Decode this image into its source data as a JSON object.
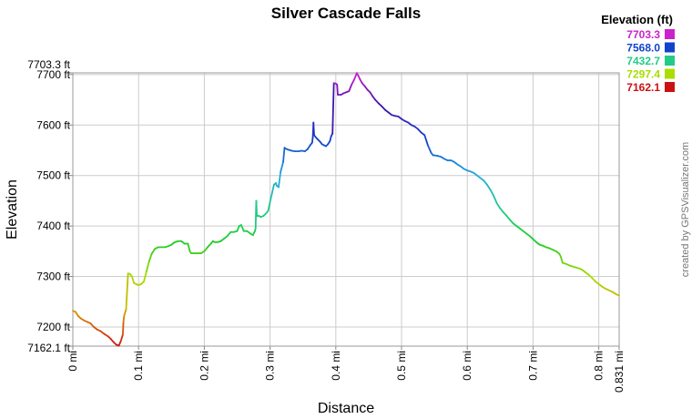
{
  "chart_data": {
    "type": "line",
    "title": "Silver Cascade Falls",
    "xlabel": "Distance",
    "ylabel": "Elevation",
    "xlim": [
      0,
      0.831
    ],
    "ylim": [
      7162.1,
      7703.3
    ],
    "x_ticks": [
      {
        "value": 0,
        "label": "0 mi"
      },
      {
        "value": 0.1,
        "label": "0.1 mi"
      },
      {
        "value": 0.2,
        "label": "0.2 mi"
      },
      {
        "value": 0.3,
        "label": "0.3 mi"
      },
      {
        "value": 0.4,
        "label": "0.4 mi"
      },
      {
        "value": 0.5,
        "label": "0.5 mi"
      },
      {
        "value": 0.6,
        "label": "0.6 mi"
      },
      {
        "value": 0.7,
        "label": "0.7 mi"
      },
      {
        "value": 0.8,
        "label": "0.8 mi"
      },
      {
        "value": 0.831,
        "label": "0.831 mi"
      }
    ],
    "y_ticks": [
      {
        "value": 7162.1,
        "label": "7162.1 ft"
      },
      {
        "value": 7200,
        "label": "7200 ft"
      },
      {
        "value": 7300,
        "label": "7300 ft"
      },
      {
        "value": 7400,
        "label": "7400 ft"
      },
      {
        "value": 7500,
        "label": "7500 ft"
      },
      {
        "value": 7600,
        "label": "7600 ft"
      },
      {
        "value": 7700,
        "label": "7700 ft"
      },
      {
        "value": 7703.3,
        "label": "7703.3 ft"
      }
    ],
    "grid": true,
    "legend": {
      "title": "Elevation (ft)",
      "placement": "top-right",
      "entries": [
        {
          "label": "7703.3",
          "color": "#cc22cc"
        },
        {
          "label": "7568.0",
          "color": "#1144cc"
        },
        {
          "label": "7432.7",
          "color": "#22cc88"
        },
        {
          "label": "7297.4",
          "color": "#aadd00"
        },
        {
          "label": "7162.1",
          "color": "#cc1111"
        }
      ]
    },
    "series": [
      {
        "x": [
          0,
          0.004,
          0.008,
          0.012,
          0.017,
          0.022,
          0.027,
          0.032,
          0.037,
          0.042,
          0.048,
          0.054,
          0.058,
          0.062,
          0.066,
          0.07,
          0.073,
          0.076,
          0.077,
          0.078,
          0.081,
          0.084,
          0.087,
          0.09,
          0.093,
          0.096,
          0.1,
          0.104,
          0.108,
          0.112,
          0.116,
          0.12,
          0.125,
          0.13,
          0.135,
          0.14,
          0.145,
          0.15,
          0.155,
          0.16,
          0.165,
          0.17,
          0.175,
          0.178,
          0.18,
          0.185,
          0.19,
          0.195,
          0.2,
          0.205,
          0.21,
          0.213,
          0.216,
          0.22,
          0.225,
          0.23,
          0.235,
          0.24,
          0.245,
          0.25,
          0.253,
          0.256,
          0.26,
          0.265,
          0.27,
          0.274,
          0.277,
          0.278,
          0.279,
          0.28,
          0.283,
          0.286,
          0.29,
          0.294,
          0.297,
          0.3,
          0.303,
          0.306,
          0.309,
          0.31,
          0.313,
          0.316,
          0.32,
          0.322,
          0.324,
          0.328,
          0.333,
          0.338,
          0.343,
          0.348,
          0.353,
          0.357,
          0.361,
          0.364,
          0.365,
          0.366,
          0.367,
          0.37,
          0.373,
          0.376,
          0.379,
          0.382,
          0.385,
          0.388,
          0.391,
          0.393,
          0.395,
          0.397,
          0.4,
          0.402,
          0.403,
          0.408,
          0.412,
          0.416,
          0.42,
          0.424,
          0.428,
          0.432,
          0.434,
          0.437,
          0.44,
          0.444,
          0.448,
          0.452,
          0.456,
          0.46,
          0.465,
          0.47,
          0.475,
          0.48,
          0.485,
          0.49,
          0.495,
          0.5,
          0.505,
          0.51,
          0.515,
          0.52,
          0.525,
          0.53,
          0.535,
          0.54,
          0.545,
          0.548,
          0.55,
          0.555,
          0.56,
          0.565,
          0.57,
          0.575,
          0.58,
          0.585,
          0.59,
          0.595,
          0.6,
          0.605,
          0.61,
          0.615,
          0.62,
          0.625,
          0.63,
          0.635,
          0.64,
          0.645,
          0.65,
          0.655,
          0.66,
          0.665,
          0.67,
          0.675,
          0.68,
          0.685,
          0.69,
          0.695,
          0.7,
          0.705,
          0.71,
          0.715,
          0.72,
          0.725,
          0.73,
          0.735,
          0.74,
          0.742,
          0.745,
          0.75,
          0.755,
          0.76,
          0.765,
          0.77,
          0.775,
          0.78,
          0.785,
          0.79,
          0.795,
          0.8,
          0.805,
          0.81,
          0.815,
          0.82,
          0.825,
          0.831
        ],
        "y": [
          7232,
          7230,
          7222,
          7217,
          7213,
          7210,
          7207,
          7200,
          7195,
          7192,
          7186,
          7181,
          7176,
          7170,
          7165,
          7163,
          7172,
          7185,
          7210,
          7222,
          7235,
          7306,
          7305,
          7300,
          7287,
          7285,
          7283,
          7285,
          7290,
          7310,
          7330,
          7345,
          7355,
          7358,
          7358,
          7358,
          7360,
          7363,
          7368,
          7370,
          7370,
          7365,
          7365,
          7350,
          7346,
          7346,
          7346,
          7346,
          7350,
          7358,
          7365,
          7370,
          7368,
          7368,
          7370,
          7375,
          7380,
          7388,
          7388,
          7390,
          7400,
          7402,
          7390,
          7390,
          7385,
          7382,
          7390,
          7395,
          7450,
          7420,
          7420,
          7418,
          7420,
          7425,
          7430,
          7448,
          7465,
          7482,
          7485,
          7480,
          7477,
          7507,
          7527,
          7555,
          7553,
          7551,
          7549,
          7548,
          7548,
          7549,
          7548,
          7552,
          7560,
          7565,
          7575,
          7605,
          7580,
          7575,
          7571,
          7567,
          7562,
          7560,
          7558,
          7562,
          7568,
          7578,
          7583,
          7683,
          7682,
          7680,
          7660,
          7660,
          7663,
          7665,
          7667,
          7680,
          7690,
          7703,
          7698,
          7690,
          7683,
          7677,
          7670,
          7665,
          7657,
          7650,
          7643,
          7637,
          7630,
          7625,
          7620,
          7618,
          7617,
          7612,
          7608,
          7605,
          7600,
          7597,
          7592,
          7585,
          7580,
          7560,
          7545,
          7540,
          7540,
          7539,
          7537,
          7533,
          7530,
          7530,
          7527,
          7522,
          7518,
          7513,
          7510,
          7508,
          7505,
          7500,
          7495,
          7490,
          7482,
          7472,
          7460,
          7445,
          7435,
          7427,
          7420,
          7412,
          7405,
          7400,
          7395,
          7390,
          7385,
          7380,
          7374,
          7368,
          7363,
          7361,
          7358,
          7356,
          7353,
          7350,
          7345,
          7340,
          7327,
          7325,
          7322,
          7320,
          7318,
          7316,
          7313,
          7308,
          7303,
          7297,
          7290,
          7285,
          7280,
          7276,
          7273,
          7270,
          7266,
          7262
        ]
      }
    ]
  },
  "credit": "created by GPSVisualizer.com"
}
